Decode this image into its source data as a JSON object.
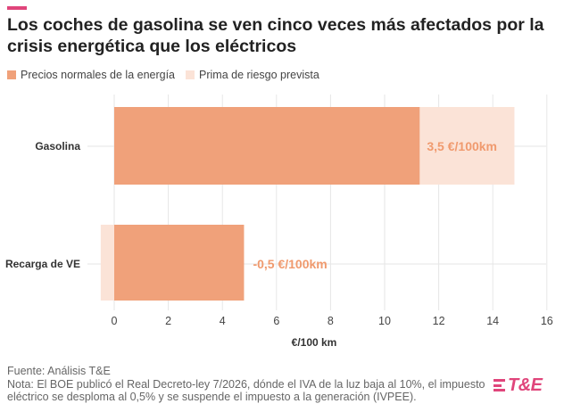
{
  "colors": {
    "accent": "#e0457b",
    "normal": "#f0a17a",
    "risk": "#fbe3d7",
    "label_text": "#f09a6e",
    "grid": "#e6e6e6"
  },
  "header": {
    "title": "Los coches de gasolina se ven cinco veces más afectados por la crisis energética que los eléctricos"
  },
  "legend": {
    "placement": "top-left",
    "items": [
      {
        "label": "Precios normales de la energía",
        "color": "#f0a17a"
      },
      {
        "label": "Prima de riesgo prevista",
        "color": "#fbe3d7"
      }
    ]
  },
  "chart_data": {
    "type": "bar",
    "orientation": "horizontal",
    "stacked": true,
    "categories": [
      "Gasolina",
      "Recarga de VE"
    ],
    "series": [
      {
        "name": "Precios normales de la energía",
        "values": [
          11.3,
          4.8
        ]
      },
      {
        "name": "Prima de riesgo prevista",
        "values": [
          3.5,
          -0.5
        ]
      }
    ],
    "data_labels": [
      "3,5 €/100km",
      "-0,5 €/100km"
    ],
    "xlabel": "€/100 km",
    "ylabel": "",
    "xlim": [
      -1,
      16
    ],
    "xticks": [
      0,
      2,
      4,
      6,
      8,
      10,
      12,
      14,
      16
    ],
    "grid": true
  },
  "footer": {
    "source": "Fuente: Análisis T&E",
    "note": "Nota: El BOE publicó el Real Decreto-ley 7/2026, dónde el IVA de la luz baja al 10%, el impuesto eléctrico se desploma al 0,5% y se suspende el impuesto a la generación (IVPEE)."
  },
  "logo": {
    "text": "T&E",
    "icon": "te-logo-bars-icon"
  }
}
